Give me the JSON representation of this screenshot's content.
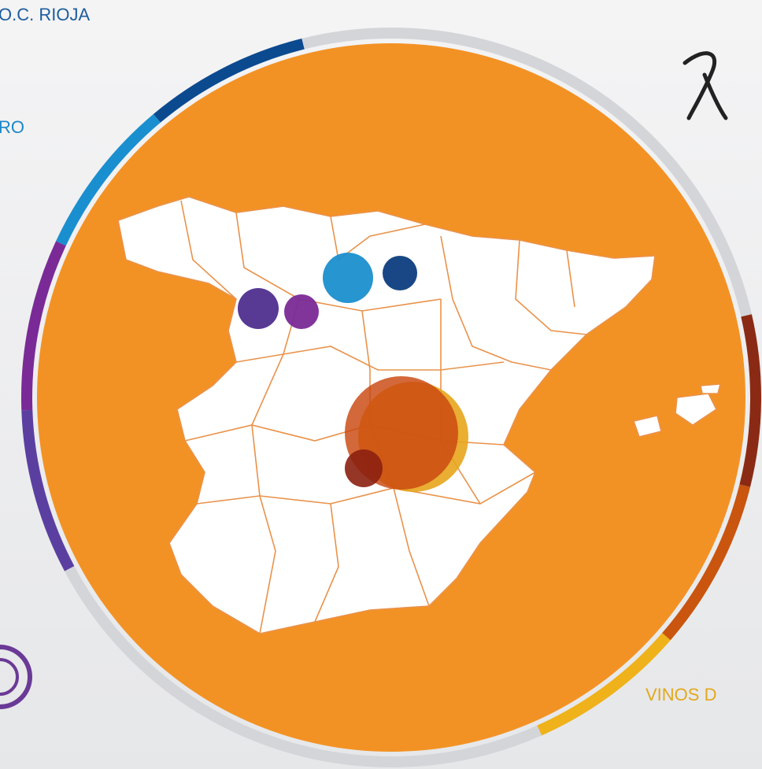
{
  "labels": {
    "top_left": "O.C. RIOJA",
    "middle_left": "RO",
    "bottom_right": "VINOS D"
  }
}
